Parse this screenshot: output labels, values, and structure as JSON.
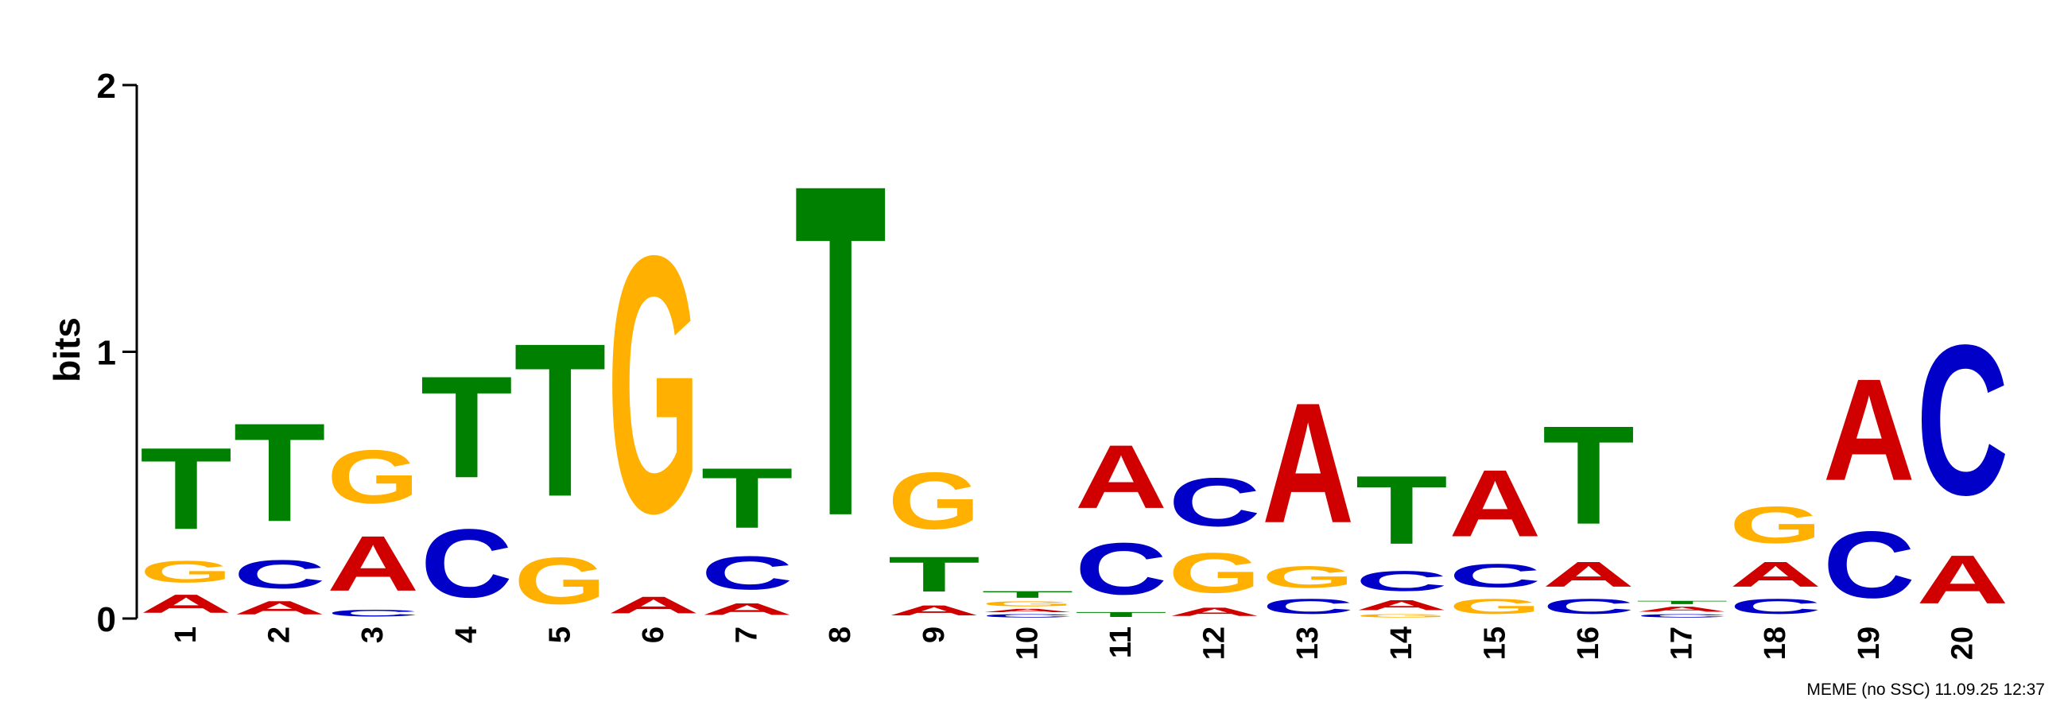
{
  "chart_data": {
    "type": "sequence-logo",
    "ylabel": "bits",
    "ylim": [
      0,
      2
    ],
    "yticks": [
      "0",
      "1",
      "2"
    ],
    "footer": "MEME (no SSC) 11.09.25 12:37",
    "colors": {
      "A": "#d00000",
      "C": "#0000c8",
      "G": "#ffb000",
      "T": "#008000"
    },
    "positions": [
      {
        "label": "1",
        "letters": [
          [
            "A",
            0.11
          ],
          [
            "G",
            0.13
          ],
          [
            "T",
            0.49
          ]
        ]
      },
      {
        "label": "2",
        "letters": [
          [
            "A",
            0.08
          ],
          [
            "C",
            0.17
          ],
          [
            "T",
            0.59
          ]
        ]
      },
      {
        "label": "3",
        "letters": [
          [
            "C",
            0.04
          ],
          [
            "A",
            0.33
          ],
          [
            "G",
            0.32
          ]
        ]
      },
      {
        "label": "4",
        "letters": [
          [
            "C",
            0.41
          ],
          [
            "T",
            0.61
          ]
        ]
      },
      {
        "label": "5",
        "letters": [
          [
            "G",
            0.28
          ],
          [
            "T",
            0.92
          ]
        ]
      },
      {
        "label": "6",
        "letters": [
          [
            "A",
            0.1
          ],
          [
            "G",
            1.54
          ]
        ]
      },
      {
        "label": "7",
        "letters": [
          [
            "A",
            0.07
          ],
          [
            "C",
            0.2
          ],
          [
            "T",
            0.36
          ]
        ]
      },
      {
        "label": "8",
        "letters": [
          [
            "T",
            1.99
          ]
        ]
      },
      {
        "label": "9",
        "letters": [
          [
            "A",
            0.06
          ],
          [
            "T",
            0.21
          ],
          [
            "G",
            0.34
          ]
        ]
      },
      {
        "label": "10",
        "letters": [
          [
            "C",
            0.02
          ],
          [
            "A",
            0.02
          ],
          [
            "G",
            0.03
          ],
          [
            "T",
            0.04
          ]
        ]
      },
      {
        "label": "11",
        "letters": [
          [
            "T",
            0.03
          ],
          [
            "C",
            0.31
          ],
          [
            "A",
            0.38
          ]
        ]
      },
      {
        "label": "12",
        "letters": [
          [
            "A",
            0.05
          ],
          [
            "G",
            0.24
          ],
          [
            "C",
            0.29
          ]
        ]
      },
      {
        "label": "13",
        "letters": [
          [
            "C",
            0.09
          ],
          [
            "G",
            0.13
          ],
          [
            "A",
            0.72
          ]
        ]
      },
      {
        "label": "14",
        "letters": [
          [
            "G",
            0.02
          ],
          [
            "A",
            0.06
          ],
          [
            "C",
            0.12
          ],
          [
            "T",
            0.41
          ]
        ]
      },
      {
        "label": "15",
        "letters": [
          [
            "G",
            0.09
          ],
          [
            "C",
            0.14
          ],
          [
            "A",
            0.4
          ]
        ]
      },
      {
        "label": "16",
        "letters": [
          [
            "C",
            0.09
          ],
          [
            "A",
            0.15
          ],
          [
            "T",
            0.59
          ]
        ]
      },
      {
        "label": "17",
        "letters": [
          [
            "C",
            0.02
          ],
          [
            "A",
            0.03
          ],
          [
            "T",
            0.02
          ]
        ]
      },
      {
        "label": "18",
        "letters": [
          [
            "C",
            0.09
          ],
          [
            "A",
            0.15
          ],
          [
            "G",
            0.22
          ]
        ]
      },
      {
        "label": "19",
        "letters": [
          [
            "C",
            0.4
          ],
          [
            "A",
            0.61
          ]
        ]
      },
      {
        "label": "20",
        "letters": [
          [
            "A",
            0.29
          ],
          [
            "C",
            0.9
          ]
        ]
      }
    ]
  }
}
